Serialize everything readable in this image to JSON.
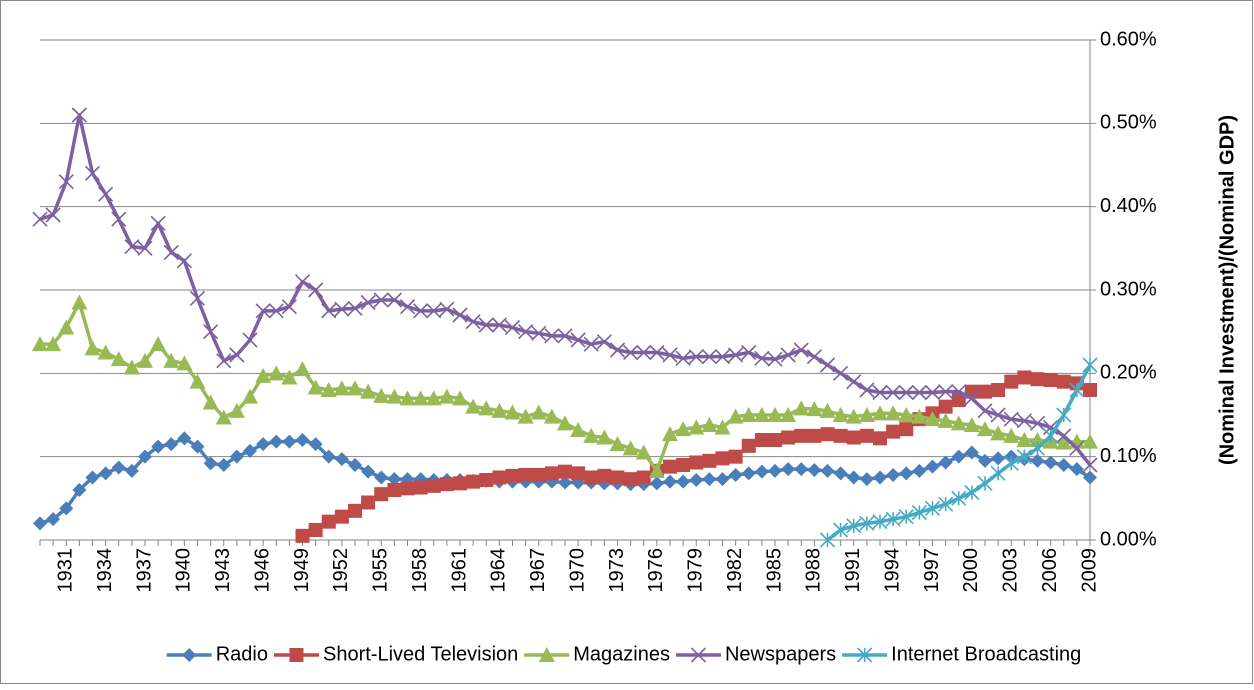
{
  "chart_data": {
    "type": "line",
    "y_label": "(Nominal Investment)/(Nominal GDP)",
    "categories": [
      null,
      null,
      "1931",
      null,
      null,
      "1934",
      null,
      null,
      "1937",
      null,
      null,
      "1940",
      null,
      null,
      "1943",
      null,
      null,
      "1946",
      null,
      null,
      "1949",
      null,
      null,
      "1952",
      null,
      null,
      "1955",
      null,
      null,
      "1958",
      null,
      null,
      "1961",
      null,
      null,
      "1964",
      null,
      null,
      "1967",
      null,
      null,
      "1970",
      null,
      null,
      "1973",
      null,
      null,
      "1976",
      null,
      null,
      "1979",
      null,
      null,
      "1982",
      null,
      null,
      "1985",
      null,
      null,
      "1988",
      null,
      null,
      "1991",
      null,
      null,
      "1994",
      null,
      null,
      "1997",
      null,
      null,
      "2000",
      null,
      null,
      "2003",
      null,
      null,
      "2006",
      null,
      null,
      "2009"
    ],
    "ylim": [
      0,
      0.6
    ],
    "yticks": [
      {
        "value": 0,
        "label": "0.00%"
      },
      {
        "value": 0.1,
        "label": "0.10%"
      },
      {
        "value": 0.2,
        "label": "0.20%"
      },
      {
        "value": 0.3,
        "label": "0.30%"
      },
      {
        "value": 0.4,
        "label": "0.40%"
      },
      {
        "value": 0.5,
        "label": "0.50%"
      },
      {
        "value": 0.6,
        "label": "0.60%"
      }
    ],
    "grid": true,
    "legend": "bottom",
    "series": [
      {
        "name": "Radio",
        "color": "#4a7ebb",
        "marker": "diamond",
        "values": [
          0.02,
          0.025,
          0.038,
          0.06,
          0.075,
          0.08,
          0.087,
          0.083,
          0.1,
          0.112,
          0.115,
          0.122,
          0.112,
          0.092,
          0.09,
          0.1,
          0.107,
          0.115,
          0.118,
          0.118,
          0.12,
          0.115,
          0.1,
          0.097,
          0.09,
          0.082,
          0.075,
          0.073,
          0.073,
          0.073,
          0.072,
          0.072,
          0.072,
          0.071,
          0.071,
          0.07,
          0.07,
          0.07,
          0.07,
          0.07,
          0.069,
          0.069,
          0.069,
          0.068,
          0.068,
          0.067,
          0.067,
          0.068,
          0.07,
          0.07,
          0.072,
          0.073,
          0.073,
          0.078,
          0.08,
          0.082,
          0.083,
          0.085,
          0.085,
          0.084,
          0.083,
          0.08,
          0.075,
          0.073,
          0.075,
          0.078,
          0.08,
          0.083,
          0.088,
          0.093,
          0.1,
          0.105,
          0.095,
          0.098,
          0.1,
          0.097,
          0.095,
          0.093,
          0.09,
          0.085,
          0.075
        ]
      },
      {
        "name": "Short-Lived Television",
        "color": "#be4b48",
        "marker": "square",
        "values": [
          null,
          null,
          null,
          null,
          null,
          null,
          null,
          null,
          null,
          null,
          null,
          null,
          null,
          null,
          null,
          null,
          null,
          null,
          null,
          null,
          0.005,
          0.012,
          0.022,
          0.028,
          0.035,
          0.045,
          0.055,
          0.06,
          0.062,
          0.063,
          0.065,
          0.067,
          0.068,
          0.07,
          0.072,
          0.075,
          0.077,
          0.078,
          0.078,
          0.08,
          0.082,
          0.08,
          0.075,
          0.077,
          0.075,
          0.073,
          0.075,
          0.083,
          0.088,
          0.09,
          0.093,
          0.095,
          0.098,
          0.1,
          0.113,
          0.12,
          0.12,
          0.123,
          0.125,
          0.125,
          0.127,
          0.125,
          0.123,
          0.125,
          0.122,
          0.13,
          0.133,
          0.145,
          0.152,
          0.16,
          0.168,
          0.178,
          0.178,
          0.18,
          0.19,
          0.195,
          0.193,
          0.192,
          0.19,
          0.188,
          0.18
        ]
      },
      {
        "name": "Magazines",
        "color": "#98b954",
        "marker": "triangle",
        "values": [
          0.235,
          0.235,
          0.255,
          0.285,
          0.23,
          0.225,
          0.217,
          0.207,
          0.215,
          0.235,
          0.215,
          0.212,
          0.19,
          0.165,
          0.147,
          0.155,
          0.172,
          0.197,
          0.2,
          0.195,
          0.205,
          0.183,
          0.18,
          0.182,
          0.182,
          0.178,
          0.173,
          0.172,
          0.17,
          0.17,
          0.17,
          0.172,
          0.17,
          0.16,
          0.158,
          0.155,
          0.153,
          0.148,
          0.153,
          0.148,
          0.14,
          0.132,
          0.125,
          0.123,
          0.115,
          0.11,
          0.105,
          0.083,
          0.127,
          0.133,
          0.135,
          0.138,
          0.135,
          0.148,
          0.15,
          0.15,
          0.15,
          0.15,
          0.158,
          0.157,
          0.155,
          0.15,
          0.148,
          0.15,
          0.152,
          0.152,
          0.15,
          0.148,
          0.145,
          0.143,
          0.14,
          0.138,
          0.133,
          0.128,
          0.125,
          0.12,
          0.12,
          0.118,
          0.117,
          0.118,
          0.118
        ]
      },
      {
        "name": "Newspapers",
        "color": "#7d60a0",
        "marker": "x",
        "values": [
          0.385,
          0.39,
          0.43,
          0.51,
          0.44,
          0.415,
          0.385,
          0.352,
          0.35,
          0.38,
          0.345,
          0.335,
          0.29,
          0.25,
          0.215,
          0.222,
          0.24,
          0.275,
          0.275,
          0.28,
          0.31,
          0.3,
          0.275,
          0.277,
          0.278,
          0.285,
          0.288,
          0.288,
          0.28,
          0.275,
          0.275,
          0.277,
          0.27,
          0.262,
          0.258,
          0.258,
          0.255,
          0.25,
          0.248,
          0.245,
          0.245,
          0.24,
          0.235,
          0.238,
          0.228,
          0.225,
          0.225,
          0.225,
          0.222,
          0.218,
          0.22,
          0.22,
          0.22,
          0.222,
          0.225,
          0.218,
          0.217,
          0.222,
          0.228,
          0.22,
          0.21,
          0.2,
          0.19,
          0.18,
          0.177,
          0.177,
          0.177,
          0.177,
          0.177,
          0.178,
          0.178,
          0.17,
          0.155,
          0.15,
          0.145,
          0.143,
          0.14,
          0.135,
          0.125,
          0.11,
          0.09
        ]
      },
      {
        "name": "Internet Broadcasting",
        "color": "#46aac5",
        "marker": "star",
        "values": [
          null,
          null,
          null,
          null,
          null,
          null,
          null,
          null,
          null,
          null,
          null,
          null,
          null,
          null,
          null,
          null,
          null,
          null,
          null,
          null,
          null,
          null,
          null,
          null,
          null,
          null,
          null,
          null,
          null,
          null,
          null,
          null,
          null,
          null,
          null,
          null,
          null,
          null,
          null,
          null,
          null,
          null,
          null,
          null,
          null,
          null,
          null,
          null,
          null,
          null,
          null,
          null,
          null,
          null,
          null,
          null,
          null,
          null,
          null,
          null,
          0.0,
          0.012,
          0.017,
          0.02,
          0.022,
          0.025,
          0.028,
          0.033,
          0.038,
          0.043,
          0.05,
          0.057,
          0.068,
          0.08,
          0.092,
          0.1,
          0.11,
          0.125,
          0.15,
          0.18,
          0.21
        ]
      }
    ]
  }
}
